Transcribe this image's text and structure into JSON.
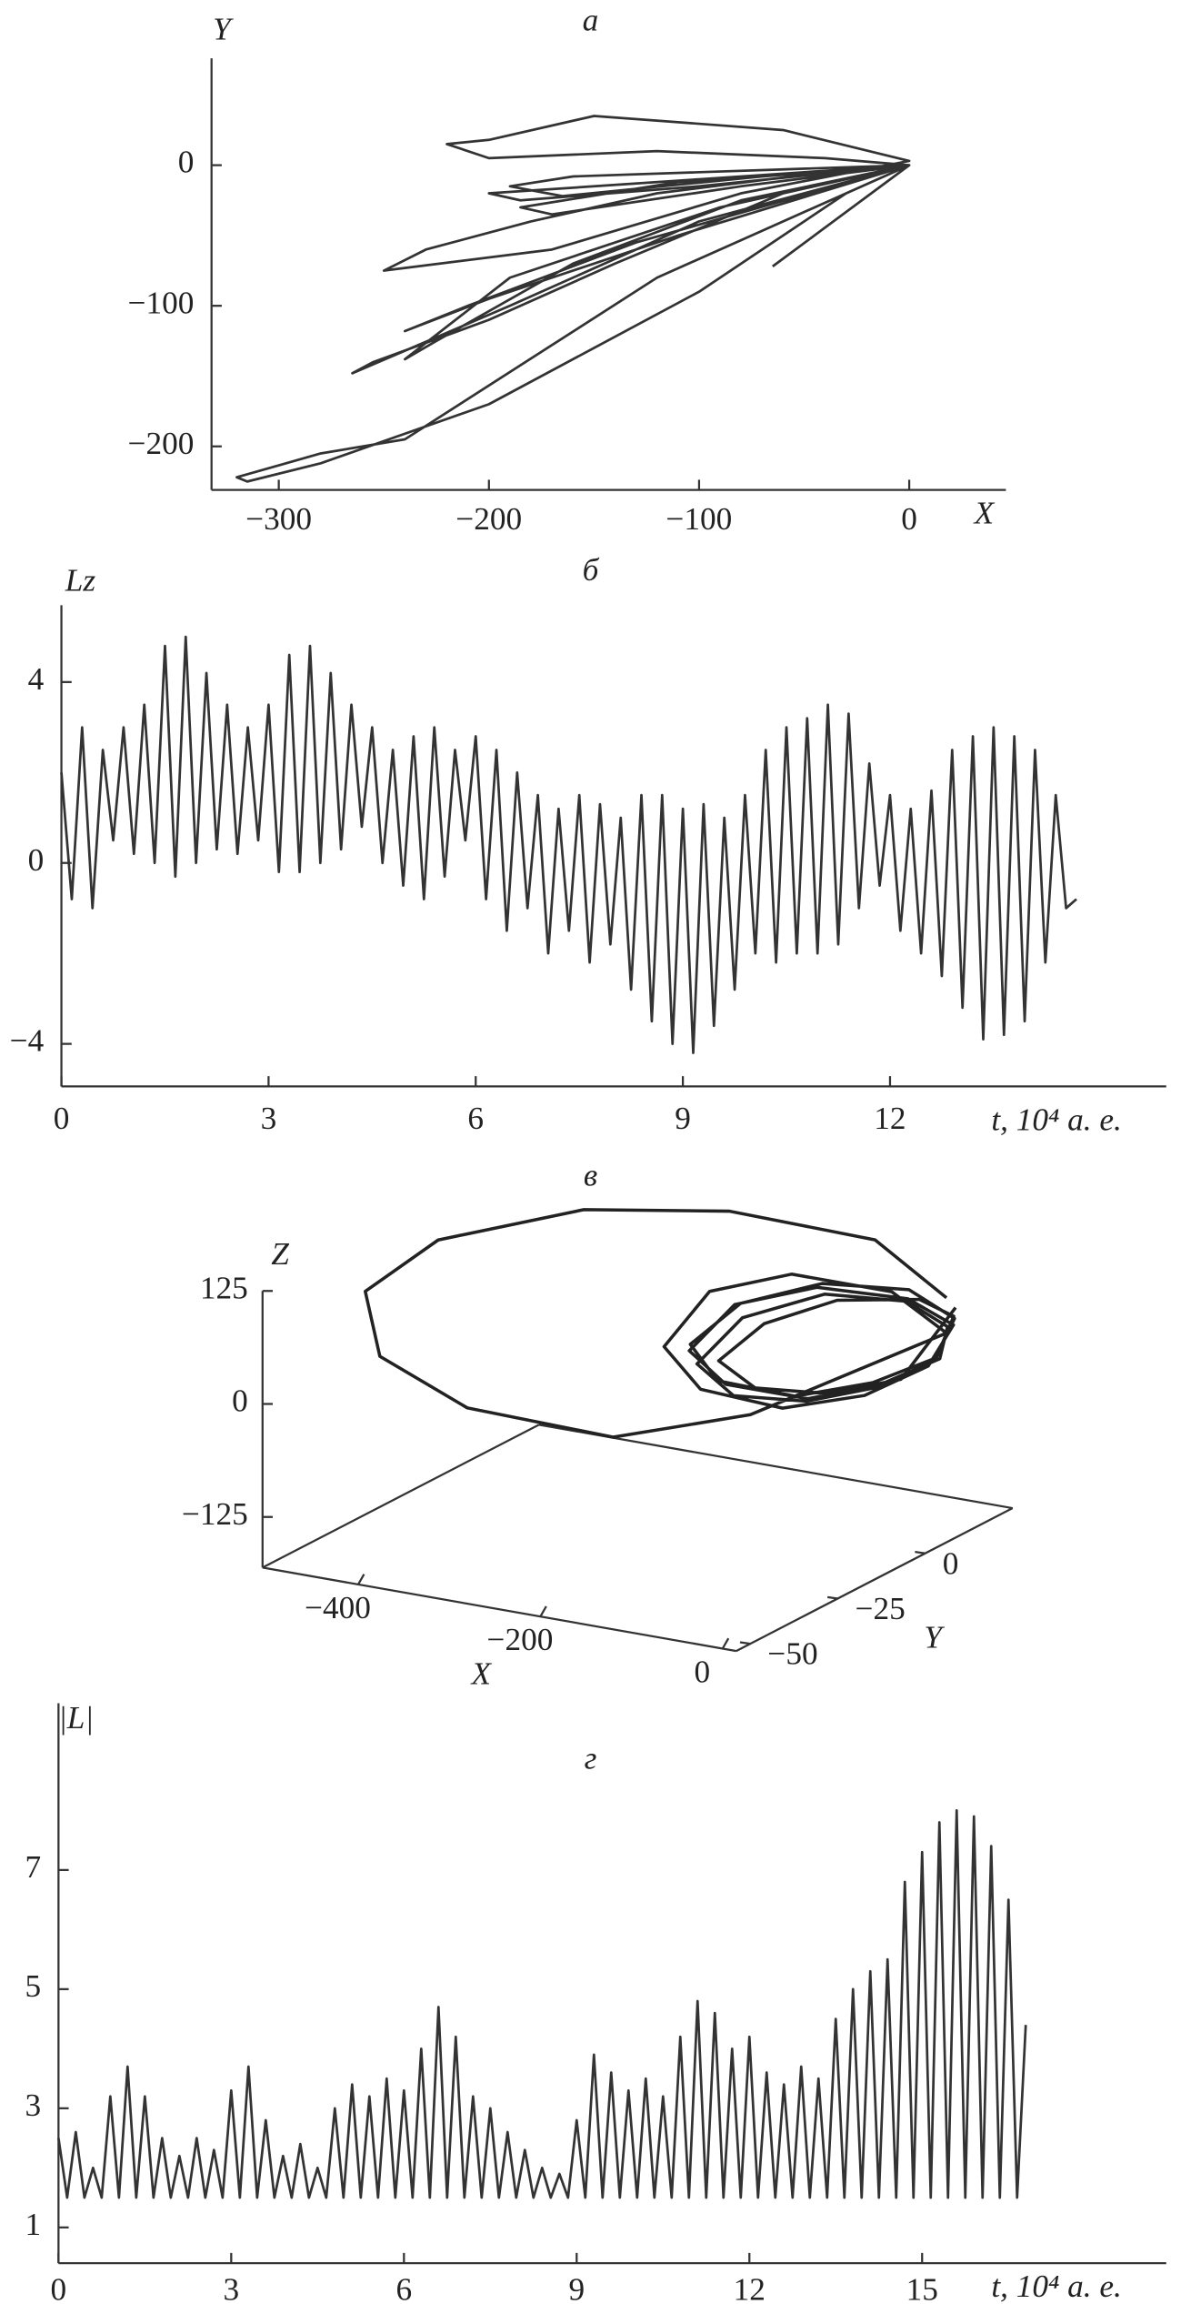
{
  "chart_data": [
    {
      "type": "line",
      "title": "а",
      "x_label": "X",
      "y_label": "Y",
      "x": [
        -65,
        0,
        -40,
        -120,
        -200,
        -220,
        -200,
        -150,
        -60,
        0,
        -80,
        -170,
        -250,
        -230,
        -180,
        -120,
        -40,
        0,
        -100,
        -190,
        -265,
        -255,
        -200,
        -140,
        -60,
        0,
        -120,
        -240,
        -280,
        -320,
        -315,
        -280,
        -200,
        -100,
        -30,
        0,
        -100,
        -200,
        -185,
        -100,
        0,
        -90,
        -190,
        -240,
        -225,
        -160,
        -80,
        0,
        -80,
        -170,
        -185,
        -110,
        0,
        -110,
        -200,
        -240,
        -210,
        -130,
        0,
        -70,
        -165,
        -190,
        -160,
        -60,
        0
      ],
      "series": [
        {
          "color": "#333333",
          "values": [
            -72,
            0,
            5,
            10,
            5,
            15,
            18,
            35,
            25,
            3,
            -20,
            -60,
            -75,
            -60,
            -40,
            -20,
            -5,
            0,
            -40,
            -100,
            -148,
            -140,
            -110,
            -70,
            -20,
            0,
            -80,
            -195,
            -205,
            -222,
            -225,
            -212,
            -170,
            -90,
            -20,
            0,
            -10,
            -20,
            -25,
            -15,
            0,
            -30,
            -80,
            -138,
            -125,
            -70,
            -25,
            0,
            -15,
            -35,
            -30,
            -12,
            0,
            -50,
            -95,
            -118,
            -100,
            -55,
            0,
            -8,
            -22,
            -15,
            -8,
            -3,
            0
          ]
        }
      ],
      "xlim": [
        -332,
        46
      ],
      "ylim": [
        -231,
        76
      ],
      "xticks": [
        {
          "value": -300,
          "label": "−300"
        },
        {
          "value": -200,
          "label": "−200"
        },
        {
          "value": -100,
          "label": "−100"
        },
        0
      ],
      "yticks": [
        {
          "value": -200,
          "label": "−200"
        },
        {
          "value": -100,
          "label": "−100"
        },
        0
      ]
    },
    {
      "type": "line",
      "title": "б",
      "x_label": "t, 10⁴ а. е.",
      "y_label": "Lz",
      "x": [
        0,
        0.15,
        0.3,
        0.45,
        0.6,
        0.75,
        0.9,
        1.05,
        1.2,
        1.35,
        1.5,
        1.65,
        1.8,
        1.95,
        2.1,
        2.25,
        2.4,
        2.55,
        2.7,
        2.85,
        3,
        3.15,
        3.3,
        3.45,
        3.6,
        3.75,
        3.9,
        4.05,
        4.2,
        4.35,
        4.5,
        4.65,
        4.8,
        4.95,
        5.1,
        5.25,
        5.4,
        5.55,
        5.7,
        5.85,
        6,
        6.15,
        6.3,
        6.45,
        6.6,
        6.75,
        6.9,
        7.05,
        7.2,
        7.35,
        7.5,
        7.65,
        7.8,
        7.95,
        8.1,
        8.25,
        8.4,
        8.55,
        8.7,
        8.85,
        9,
        9.15,
        9.3,
        9.45,
        9.6,
        9.75,
        9.9,
        10.05,
        10.2,
        10.35,
        10.5,
        10.65,
        10.8,
        10.95,
        11.1,
        11.25,
        11.4,
        11.55,
        11.7,
        11.85,
        12,
        12.15,
        12.3,
        12.45,
        12.6,
        12.75,
        12.9,
        13.05,
        13.2,
        13.35,
        13.5,
        13.65,
        13.8,
        13.95,
        14.1,
        14.25,
        14.4,
        14.55,
        14.7
      ],
      "series": [
        {
          "color": "#333333",
          "values": [
            2,
            -0.8,
            3,
            -1,
            2.5,
            0.5,
            3,
            0.2,
            3.5,
            0,
            4.8,
            -0.3,
            5,
            0,
            4.2,
            0.3,
            3.5,
            0.2,
            3,
            0.5,
            3.5,
            -0.2,
            4.6,
            -0.2,
            4.8,
            0,
            4.2,
            0.3,
            3.5,
            0.8,
            3,
            0,
            2.5,
            -0.5,
            2.8,
            -0.8,
            3,
            -0.3,
            2.5,
            0.5,
            2.8,
            -0.8,
            2.5,
            -1.5,
            2,
            -1,
            1.5,
            -2,
            1.2,
            -1.5,
            1.5,
            -2.2,
            1.3,
            -1.8,
            1,
            -2.8,
            1.5,
            -3.5,
            1.5,
            -4,
            1.2,
            -4.2,
            1.3,
            -3.6,
            1,
            -2.8,
            1.5,
            -2,
            2.5,
            -2.2,
            3,
            -2,
            3.2,
            -2,
            3.5,
            -1.8,
            3.3,
            -1,
            2.2,
            -0.5,
            1.5,
            -1.5,
            1.2,
            -2,
            1.6,
            -2.5,
            2.5,
            -3.2,
            2.8,
            -3.9,
            3,
            -3.8,
            2.8,
            -3.5,
            2.5,
            -2.2,
            1.5,
            -1,
            -0.8
          ]
        }
      ],
      "xlim": [
        0,
        16
      ],
      "ylim": [
        -4.94,
        5.7
      ],
      "xticks": [
        0,
        3,
        6,
        9,
        12
      ],
      "yticks": [
        4,
        0,
        {
          "value": -4,
          "label": "−4"
        }
      ]
    },
    {
      "type": "line3d",
      "title": "в",
      "x_label": "X",
      "y_label": "Y",
      "z_label": "Z",
      "color": "#222222",
      "x": [
        0,
        -40,
        -123,
        -206,
        -366,
        -446,
        -430,
        -334,
        -174,
        -100,
        0,
        -60,
        -170,
        -260,
        -310,
        -270,
        -180,
        -90,
        -20,
        0,
        -50,
        -150,
        -240,
        -290,
        -250,
        -160,
        -80,
        -15,
        5,
        -40,
        -130,
        -220,
        -270,
        -230,
        -150,
        -70,
        -10,
        5,
        -45,
        -140,
        -230,
        -285,
        -255,
        -170,
        -85,
        -15,
        8,
        -30,
        -120,
        -200,
        -250,
        -210,
        -130,
        -50,
        10
      ],
      "y": [
        10,
        0,
        -20,
        -40,
        -40,
        -40,
        -40,
        -40,
        -40,
        -20,
        10,
        10,
        10,
        10,
        10,
        10,
        10,
        10,
        10,
        12,
        12,
        12,
        12,
        12,
        12,
        12,
        12,
        12,
        9,
        9,
        9,
        9,
        9,
        9,
        9,
        9,
        9,
        11,
        11,
        11,
        11,
        11,
        11,
        11,
        11,
        11,
        10,
        10,
        10,
        10,
        10,
        10,
        10,
        10,
        10
      ],
      "z": [
        79,
        156,
        213,
        240,
        178,
        107,
        38,
        -2,
        -6,
        -8,
        40,
        75,
        75,
        40,
        -30,
        -70,
        -75,
        -45,
        0,
        45,
        65,
        60,
        25,
        -35,
        -65,
        -65,
        -35,
        5,
        50,
        70,
        62,
        20,
        -40,
        -68,
        -60,
        -30,
        10,
        55,
        78,
        68,
        30,
        -25,
        -60,
        -62,
        -32,
        8,
        60,
        72,
        55,
        15,
        -35,
        -58,
        -50,
        -20,
        70
      ],
      "xlim": [
        -505,
        15
      ],
      "ylim": [
        -54,
        25
      ],
      "zlim": [
        -181,
        125
      ],
      "xticks": [
        {
          "value": -400,
          "label": "−400"
        },
        {
          "value": -200,
          "label": "−200"
        },
        0
      ],
      "yticks": [
        {
          "value": -50,
          "label": "−50"
        },
        {
          "value": -25,
          "label": "−25"
        },
        0
      ],
      "zticks": [
        {
          "value": -125,
          "label": "−125"
        },
        0,
        125
      ]
    },
    {
      "type": "line",
      "title": "г",
      "x_label": "t, 10⁴ а. е.",
      "y_label": "|L|",
      "x": [
        0,
        0.15,
        0.3,
        0.45,
        0.6,
        0.75,
        0.9,
        1.05,
        1.2,
        1.35,
        1.5,
        1.65,
        1.8,
        1.95,
        2.1,
        2.25,
        2.4,
        2.55,
        2.7,
        2.85,
        3,
        3.15,
        3.3,
        3.45,
        3.6,
        3.75,
        3.9,
        4.05,
        4.2,
        4.35,
        4.5,
        4.65,
        4.8,
        4.95,
        5.1,
        5.25,
        5.4,
        5.55,
        5.7,
        5.85,
        6,
        6.15,
        6.3,
        6.45,
        6.6,
        6.75,
        6.9,
        7.05,
        7.2,
        7.35,
        7.5,
        7.65,
        7.8,
        7.95,
        8.1,
        8.25,
        8.4,
        8.55,
        8.7,
        8.85,
        9,
        9.15,
        9.3,
        9.45,
        9.6,
        9.75,
        9.9,
        10.05,
        10.2,
        10.35,
        10.5,
        10.65,
        10.8,
        10.95,
        11.1,
        11.25,
        11.4,
        11.55,
        11.7,
        11.85,
        12,
        12.15,
        12.3,
        12.45,
        12.6,
        12.75,
        12.9,
        13.05,
        13.2,
        13.35,
        13.5,
        13.65,
        13.8,
        13.95,
        14.1,
        14.25,
        14.4,
        14.55,
        14.7,
        14.85,
        15,
        15.15,
        15.3,
        15.45,
        15.6,
        15.75,
        15.9,
        16.05,
        16.2,
        16.35,
        16.5,
        16.65,
        16.8
      ],
      "series": [
        {
          "color": "#333333",
          "values": [
            2.5,
            1.5,
            2.6,
            1.5,
            2,
            1.5,
            3.2,
            1.5,
            3.7,
            1.5,
            3.2,
            1.5,
            2.5,
            1.5,
            2.2,
            1.5,
            2.5,
            1.5,
            2.3,
            1.5,
            3.3,
            1.5,
            3.7,
            1.5,
            2.8,
            1.5,
            2.2,
            1.5,
            2.4,
            1.5,
            2,
            1.5,
            3,
            1.5,
            3.4,
            1.5,
            3.2,
            1.5,
            3.5,
            1.5,
            3.3,
            1.5,
            4,
            1.5,
            4.7,
            1.5,
            4.2,
            1.5,
            3.2,
            1.5,
            3,
            1.5,
            2.6,
            1.5,
            2.3,
            1.5,
            2,
            1.5,
            1.9,
            1.5,
            2.8,
            1.5,
            3.9,
            1.5,
            3.6,
            1.5,
            3.3,
            1.5,
            3.5,
            1.5,
            3.2,
            1.5,
            4.2,
            1.5,
            4.8,
            1.5,
            4.6,
            1.5,
            4,
            1.5,
            4.2,
            1.5,
            3.6,
            1.5,
            3.4,
            1.5,
            3.7,
            1.5,
            3.5,
            1.5,
            4.5,
            1.5,
            5,
            1.5,
            5.3,
            1.5,
            5.5,
            1.5,
            6.8,
            1.5,
            7.3,
            1.5,
            7.8,
            1.5,
            8,
            1.5,
            7.9,
            1.5,
            7.4,
            1.5,
            6.5,
            1.5,
            4.4
          ]
        }
      ],
      "xlim": [
        0,
        19.24
      ],
      "ylim": [
        0.4,
        9.8
      ],
      "xticks": [
        0,
        3,
        6,
        9,
        12,
        15
      ],
      "yticks": [
        1,
        3,
        5,
        7
      ]
    }
  ]
}
